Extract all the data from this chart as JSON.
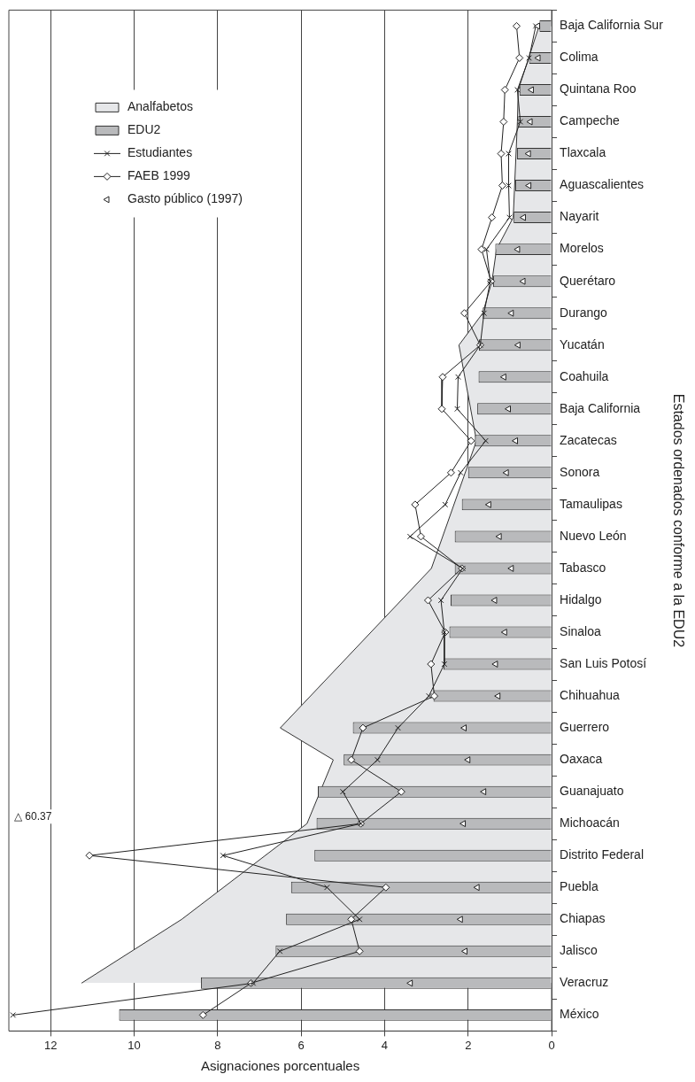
{
  "chart_data": {
    "type": "bar",
    "orientation": "horizontal",
    "xlabel": "Asignaciones porcentuales",
    "ylabel": "Estados ordenados conforme a la EDU2",
    "categories": [
      "Baja California Sur",
      "Colima",
      "Quintana Roo",
      "Campeche",
      "Tlaxcala",
      "Aguascalientes",
      "Nayarit",
      "Morelos",
      "Querétaro",
      "Durango",
      "Yucatán",
      "Coahuila",
      "Baja California",
      "Zacatecas",
      "Sonora",
      "Tamaulipas",
      "Nuevo León",
      "Tabasco",
      "Hidalgo",
      "Sinaloa",
      "San Luis Potosí",
      "Chihuahua",
      "Guerrero",
      "Oaxaca",
      "Guanajuato",
      "Michoacán",
      "Distrito Federal",
      "Puebla",
      "Chiapas",
      "Jalisco",
      "Veracruz",
      "México"
    ],
    "series": [
      {
        "name": "Analfabetos",
        "type": "area",
        "color": "#e6e7e9",
        "values": [
          0.3,
          0.55,
          0.8,
          0.82,
          null,
          null,
          0.92,
          1.32,
          1.43,
          1.65,
          2.22,
          null,
          null,
          1.8,
          null,
          null,
          null,
          2.88,
          null,
          null,
          null,
          null,
          6.5,
          5.23,
          null,
          5.86,
          null,
          null,
          8.86,
          null,
          11.26,
          null
        ]
      },
      {
        "name": "EDU2",
        "color": "#b9babc",
        "values": [
          0.29,
          0.54,
          0.77,
          0.8,
          0.83,
          0.87,
          0.91,
          1.35,
          1.4,
          1.65,
          1.74,
          1.75,
          1.78,
          1.84,
          2.0,
          2.15,
          2.32,
          2.32,
          2.42,
          2.45,
          2.59,
          2.83,
          4.76,
          4.98,
          5.6,
          5.63,
          5.68,
          6.24,
          6.36,
          6.61,
          8.4,
          10.36
        ]
      },
      {
        "name": "Estudiantes",
        "type": "line",
        "marker": "cross",
        "color": "#222222",
        "values": [
          0.38,
          0.54,
          0.82,
          0.75,
          1.03,
          1.03,
          1.01,
          1.56,
          1.47,
          1.62,
          1.71,
          2.24,
          2.26,
          1.58,
          2.18,
          2.55,
          3.39,
          2.13,
          2.65,
          2.57,
          2.57,
          2.94,
          3.68,
          4.17,
          5.0,
          4.57,
          7.87,
          5.38,
          4.6,
          6.51,
          7.15,
          12.9
        ]
      },
      {
        "name": "FAEB 1999",
        "type": "line",
        "marker": "diamond",
        "color": "#222222",
        "values": [
          0.84,
          0.77,
          1.12,
          1.15,
          1.21,
          1.18,
          1.43,
          1.68,
          1.45,
          2.09,
          1.71,
          2.61,
          2.63,
          1.93,
          2.41,
          3.27,
          3.13,
          2.15,
          2.96,
          2.55,
          2.89,
          2.81,
          4.52,
          4.8,
          3.6,
          4.57,
          11.07,
          3.97,
          4.8,
          4.6,
          7.2,
          8.35
        ]
      },
      {
        "name": "Gasto público (1997)",
        "type": "scatter",
        "marker": "triangle",
        "color": "#222222",
        "values": [
          0.33,
          0.32,
          0.48,
          0.51,
          0.55,
          0.54,
          0.67,
          0.81,
          0.68,
          0.96,
          0.8,
          1.14,
          1.03,
          0.86,
          1.08,
          1.5,
          1.25,
          0.96,
          1.36,
          1.12,
          1.34,
          1.28,
          2.09,
          2.0,
          1.62,
          2.11,
          null,
          1.78,
          2.18,
          2.07,
          3.38,
          null
        ]
      }
    ],
    "xlim": [
      13,
      0
    ],
    "xticks": [
      0,
      2,
      4,
      6,
      8,
      10,
      12
    ],
    "grid": "x",
    "legend": "top left",
    "annotations": [
      "△ 60.37"
    ]
  }
}
